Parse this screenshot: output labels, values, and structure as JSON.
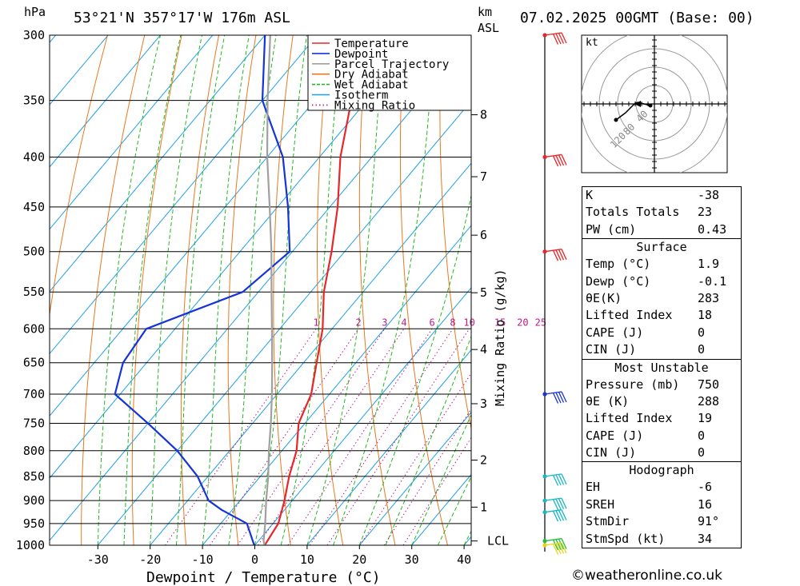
{
  "header": {
    "location": "53°21'N  357°17'W  176m  ASL",
    "datetime": "07.02.2025  00GMT  (Base: 00)",
    "left_unit": "hPa",
    "right_unit_1": "km",
    "right_unit_2": "ASL"
  },
  "chart_data": {
    "type": "line",
    "title": "53°21'N  357°17'W  176m  ASL",
    "xlabel": "Dewpoint / Temperature (°C)",
    "ylabel": "hPa",
    "xlim": [
      -39,
      41
    ],
    "ylim": [
      1000,
      300
    ],
    "y_scale": "log",
    "x_ticks": [
      -30,
      -20,
      -10,
      0,
      10,
      20,
      30,
      40
    ],
    "pressure_levels": [
      300,
      350,
      400,
      450,
      500,
      550,
      600,
      650,
      700,
      750,
      800,
      850,
      900,
      950,
      1000
    ],
    "height_ticks": [
      {
        "km": "1",
        "p": 914
      },
      {
        "km": "2",
        "p": 818
      },
      {
        "km": "3",
        "p": 716
      },
      {
        "km": "4",
        "p": 630
      },
      {
        "km": "5",
        "p": 551
      },
      {
        "km": "6",
        "p": 481
      },
      {
        "km": "7",
        "p": 419
      },
      {
        "km": "8",
        "p": 362
      }
    ],
    "lcl": {
      "label": "LCL",
      "p": 990
    },
    "mixing_ratio_label": "Mixing Ratio (g/kg)",
    "mixing_ratios": [
      "1",
      "2",
      "3",
      "4",
      "6",
      "8",
      "10",
      "15",
      "20",
      "25"
    ],
    "legend": [
      "Temperature",
      "Dewpoint",
      "Parcel Trajectory",
      "Dry Adiabat",
      "Wet Adiabat",
      "Isotherm",
      "Mixing Ratio"
    ],
    "legend_position": "top-right",
    "series": [
      {
        "name": "Temperature",
        "color": "#e8262a",
        "points": [
          [
            1000,
            1.9
          ],
          [
            950,
            1.0
          ],
          [
            900,
            -1.5
          ],
          [
            850,
            -4.5
          ],
          [
            800,
            -7.2
          ],
          [
            750,
            -11.2
          ],
          [
            700,
            -13.5
          ],
          [
            650,
            -17.5
          ],
          [
            600,
            -21.8
          ],
          [
            550,
            -27.5
          ],
          [
            500,
            -32.5
          ],
          [
            450,
            -38.5
          ],
          [
            400,
            -46.0
          ],
          [
            350,
            -53.0
          ],
          [
            300,
            -61.0
          ]
        ]
      },
      {
        "name": "Dewpoint",
        "color": "#1533d8",
        "points": [
          [
            1000,
            -0.1
          ],
          [
            950,
            -5.0
          ],
          [
            920,
            -12.0
          ],
          [
            900,
            -16.0
          ],
          [
            850,
            -22.0
          ],
          [
            800,
            -30.0
          ],
          [
            750,
            -40.0
          ],
          [
            700,
            -51.0
          ],
          [
            650,
            -54.5
          ],
          [
            600,
            -55.5
          ],
          [
            550,
            -43.0
          ],
          [
            500,
            -40.5
          ],
          [
            450,
            -48.0
          ],
          [
            400,
            -57.0
          ],
          [
            350,
            -70.0
          ],
          [
            300,
            -80.0
          ]
        ]
      },
      {
        "name": "Parcel Trajectory",
        "color": "#a0a0a0",
        "points": [
          [
            1000,
            1.9
          ],
          [
            990,
            1.0
          ],
          [
            950,
            -1.5
          ],
          [
            900,
            -5.0
          ],
          [
            850,
            -8.5
          ],
          [
            800,
            -12.5
          ],
          [
            750,
            -16.5
          ],
          [
            700,
            -21.0
          ],
          [
            650,
            -26.0
          ],
          [
            600,
            -31.5
          ],
          [
            550,
            -37.5
          ],
          [
            500,
            -44.0
          ],
          [
            450,
            -51.5
          ],
          [
            400,
            -60.0
          ],
          [
            350,
            -69.0
          ],
          [
            300,
            -79.0
          ]
        ]
      }
    ],
    "wind_barbs": [
      {
        "p": 300,
        "color": "#e8262a"
      },
      {
        "p": 400,
        "color": "#e8262a"
      },
      {
        "p": 500,
        "color": "#e8262a"
      },
      {
        "p": 700,
        "color": "#1533d8"
      },
      {
        "p": 850,
        "color": "#18b7c2"
      },
      {
        "p": 900,
        "color": "#18b7c2"
      },
      {
        "p": 925,
        "color": "#18b7c2"
      },
      {
        "p": 990,
        "color": "#22c03a"
      },
      {
        "p": 1000,
        "color": "#e8d21c"
      }
    ],
    "hodograph": {
      "unit": "kt",
      "ring_labels": [
        "40",
        "80",
        "120"
      ]
    }
  },
  "indices": {
    "k_label": "K",
    "k": "-38",
    "tt_label": "Totals Totals",
    "tt": "23",
    "pw_label": "PW (cm)",
    "pw": "0.43"
  },
  "surface": {
    "title": "Surface",
    "temp_label": "Temp (°C)",
    "temp": "1.9",
    "dewp_label": "Dewp (°C)",
    "dewp": "-0.1",
    "theta_label": "θE(K)",
    "theta": "283",
    "li_label": "Lifted Index",
    "li": "18",
    "cape_label": "CAPE (J)",
    "cape": "0",
    "cin_label": "CIN (J)",
    "cin": "0"
  },
  "most_unstable": {
    "title": "Most Unstable",
    "pressure_label": "Pressure (mb)",
    "pressure": "750",
    "theta_label": "θE (K)",
    "theta": "288",
    "li_label": "Lifted Index",
    "li": "19",
    "cape_label": "CAPE (J)",
    "cape": "0",
    "cin_label": "CIN (J)",
    "cin": "0"
  },
  "hodograph_table": {
    "title": "Hodograph",
    "eh_label": "EH",
    "eh": "-6",
    "sreh_label": "SREH",
    "sreh": "16",
    "stmdir_label": "StmDir",
    "stmdir": "91°",
    "stmspd_label": "StmSpd (kt)",
    "stmspd": "34"
  },
  "footer": {
    "copyright": "©weatheronline.co.uk"
  },
  "colors": {
    "temperature": "#e8262a",
    "dewpoint": "#1533d8",
    "parcel": "#a0a0a0",
    "dry_adiabat": "#e8781e",
    "wet_adiabat": "#22b822",
    "isotherm": "#1ea0e8",
    "mixing_ratio": "#c0188a"
  }
}
